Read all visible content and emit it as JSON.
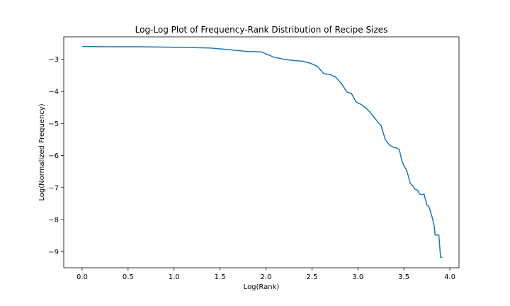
{
  "chart_data": {
    "type": "line",
    "title": "Log-Log Plot of Frequency-Rank Distribution of Recipe Sizes",
    "xlabel": "Log(Rank)",
    "ylabel": "Log(Normalized Frequency)",
    "xlim": [
      -0.2,
      4.1
    ],
    "ylim": [
      -9.5,
      -2.3
    ],
    "xticks": [
      0.0,
      0.5,
      1.0,
      1.5,
      2.0,
      2.5,
      3.0,
      3.5,
      4.0
    ],
    "xtick_labels": [
      "0.0",
      "0.5",
      "1.0",
      "1.5",
      "2.0",
      "2.5",
      "3.0",
      "3.5",
      "4.0"
    ],
    "yticks": [
      -3,
      -4,
      -5,
      -6,
      -7,
      -8,
      -9
    ],
    "ytick_labels": [
      "−3",
      "−4",
      "−5",
      "−6",
      "−7",
      "−8",
      "−9"
    ],
    "grid": false,
    "series": [
      {
        "color": "#1f77b4",
        "points": [
          [
            0.0,
            -2.6
          ],
          [
            0.3,
            -2.61
          ],
          [
            0.6,
            -2.61
          ],
          [
            0.9,
            -2.62
          ],
          [
            1.1,
            -2.63
          ],
          [
            1.39,
            -2.65
          ],
          [
            1.6,
            -2.7
          ],
          [
            1.8,
            -2.76
          ],
          [
            1.95,
            -2.77
          ],
          [
            2.08,
            -2.93
          ],
          [
            2.2,
            -3.0
          ],
          [
            2.3,
            -3.04
          ],
          [
            2.4,
            -3.06
          ],
          [
            2.48,
            -3.12
          ],
          [
            2.56,
            -3.22
          ],
          [
            2.63,
            -3.45
          ],
          [
            2.7,
            -3.48
          ],
          [
            2.76,
            -3.56
          ],
          [
            2.82,
            -3.75
          ],
          [
            2.88,
            -4.02
          ],
          [
            2.93,
            -4.07
          ],
          [
            2.98,
            -4.33
          ],
          [
            3.03,
            -4.4
          ],
          [
            3.08,
            -4.5
          ],
          [
            3.13,
            -4.64
          ],
          [
            3.18,
            -4.82
          ],
          [
            3.22,
            -4.97
          ],
          [
            3.25,
            -5.05
          ],
          [
            3.3,
            -5.52
          ],
          [
            3.35,
            -5.69
          ],
          [
            3.39,
            -5.75
          ],
          [
            3.42,
            -5.76
          ],
          [
            3.45,
            -5.82
          ],
          [
            3.48,
            -6.17
          ],
          [
            3.5,
            -6.32
          ],
          [
            3.53,
            -6.45
          ],
          [
            3.57,
            -6.87
          ],
          [
            3.6,
            -6.95
          ],
          [
            3.62,
            -7.05
          ],
          [
            3.65,
            -7.08
          ],
          [
            3.67,
            -7.2
          ],
          [
            3.7,
            -7.22
          ],
          [
            3.72,
            -7.2
          ],
          [
            3.75,
            -7.55
          ],
          [
            3.77,
            -7.58
          ],
          [
            3.79,
            -7.75
          ],
          [
            3.81,
            -7.95
          ],
          [
            3.83,
            -8.2
          ],
          [
            3.84,
            -8.48
          ],
          [
            3.87,
            -8.48
          ],
          [
            3.88,
            -8.48
          ],
          [
            3.9,
            -9.17
          ],
          [
            3.92,
            -9.18
          ]
        ]
      }
    ]
  }
}
